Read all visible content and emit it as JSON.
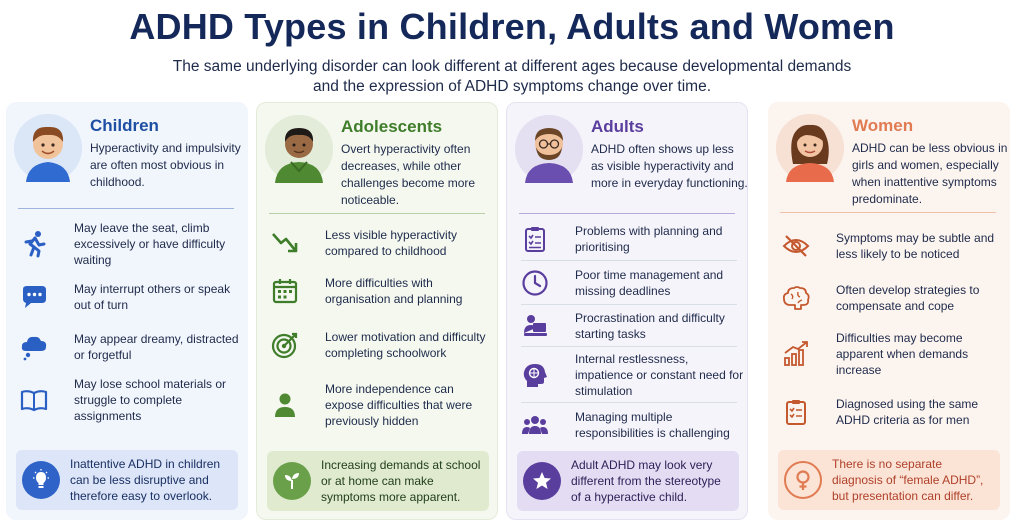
{
  "title": "ADHD Types in Children, Adults and Women",
  "subtitle_line1": "The same underlying disorder can look different at different ages because developmental demands",
  "subtitle_line2": "and the expression of ADHD symptoms change over time.",
  "colors": {
    "children": "#1f4fa3",
    "adolescents": "#3f7d2a",
    "adults": "#5a3e9e",
    "women": "#e07b52"
  },
  "cards": [
    {
      "title": "Children",
      "description": "Hyperactivity and impulsivity are often most obvious in childhood.",
      "items": [
        {
          "icon": "running-person-icon",
          "text": "May leave the seat, climb excessively or have difficulty waiting"
        },
        {
          "icon": "speech-bubble-icon",
          "text": "May interrupt others or speak out of turn"
        },
        {
          "icon": "thought-cloud-icon",
          "text": "May appear dreamy, distracted or forgetful"
        },
        {
          "icon": "open-book-icon",
          "text": "May lose school materials or struggle to complete assignments"
        }
      ],
      "callout_icon": "lightbulb-icon",
      "callout": "Inattentive ADHD in children can be less disruptive and therefore easy to overlook."
    },
    {
      "title": "Adolescents",
      "description": "Overt hyperactivity often decreases, while other challenges become more noticeable.",
      "items": [
        {
          "icon": "trend-down-icon",
          "text": "Less visible hyperactivity compared to childhood"
        },
        {
          "icon": "calendar-icon",
          "text": "More difficulties with organisation and planning"
        },
        {
          "icon": "target-icon",
          "text": "Lower motivation and difficulty completing schoolwork"
        },
        {
          "icon": "person-icon",
          "text": "More independence can expose difficulties that were previously hidden"
        }
      ],
      "callout_icon": "sprout-icon",
      "callout": "Increasing demands at school or at home can make symptoms more apparent."
    },
    {
      "title": "Adults",
      "description": "ADHD often shows up less as visible hyperactivity and more in everyday functioning.",
      "items": [
        {
          "icon": "clipboard-checklist-icon",
          "text": "Problems with planning and prioritising"
        },
        {
          "icon": "clock-icon",
          "text": "Poor time management and missing deadlines"
        },
        {
          "icon": "laptop-worker-icon",
          "text": "Procrastination and difficulty starting tasks"
        },
        {
          "icon": "head-brain-icon",
          "text": "Internal restlessness, impatience or constant need for stimulation"
        },
        {
          "icon": "group-people-icon",
          "text": "Managing multiple responsibilities is challenging"
        }
      ],
      "callout_icon": "star-icon",
      "callout": "Adult ADHD may look very different from the stereotype of a hyperactive child."
    },
    {
      "title": "Women",
      "description": "ADHD can be less obvious in girls and women, especially when inattentive symptoms predominate.",
      "items": [
        {
          "icon": "eye-slash-icon",
          "text": "Symptoms may be subtle and less likely to be noticed"
        },
        {
          "icon": "brain-icon",
          "text": "Often develop strategies to compensate and cope"
        },
        {
          "icon": "bar-chart-up-icon",
          "text": "Difficulties may become apparent when demands increase"
        },
        {
          "icon": "checklist-icon",
          "text": "Diagnosed using the same ADHD criteria as for men"
        }
      ],
      "callout_icon": "female-symbol-icon",
      "callout": "There is no separate diagnosis of “female ADHD”, but presentation can differ."
    }
  ]
}
